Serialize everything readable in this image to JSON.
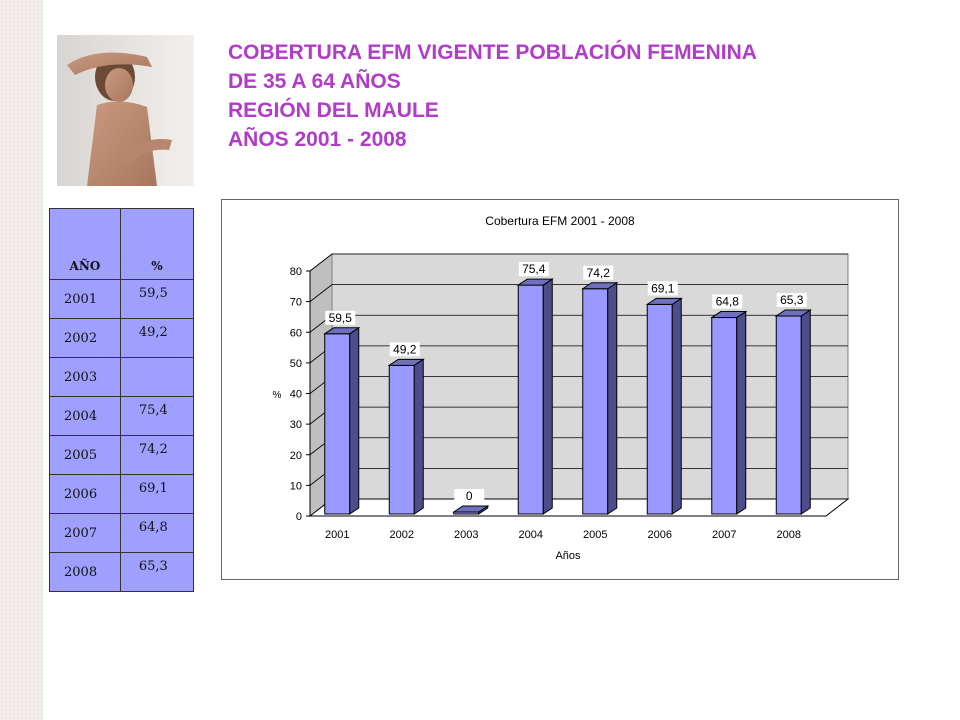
{
  "title": {
    "line1": "COBERTURA EFM VIGENTE POBLACIÓN FEMENINA",
    "line2": "DE 35 A 64 AÑOS",
    "line3": "REGIÓN DEL MAULE",
    "line4": "AÑOS 2001 - 2008"
  },
  "table": {
    "headers": [
      "AÑO",
      "%"
    ],
    "rows": [
      {
        "year": "2001",
        "value": "59,5"
      },
      {
        "year": "2002",
        "value": "49,2"
      },
      {
        "year": "2003",
        "value": ""
      },
      {
        "year": "2004",
        "value": "75,4"
      },
      {
        "year": "2005",
        "value": "74,2"
      },
      {
        "year": "2006",
        "value": "69,1"
      },
      {
        "year": "2007",
        "value": "64,8"
      },
      {
        "year": "2008",
        "value": "65,3"
      }
    ]
  },
  "colors": {
    "title": "#b03cc8",
    "bar_front": "#9999ff",
    "bar_side": "#4d4d8c",
    "bar_top": "#7070c0",
    "table_bg": "#9f9fff",
    "plot_wall": "#d9d9d9"
  },
  "chart_data": {
    "type": "bar",
    "title": "Cobertura EFM 2001 - 2008",
    "xlabel": "Años",
    "ylabel": "%",
    "categories": [
      "2001",
      "2002",
      "2003",
      "2004",
      "2005",
      "2006",
      "2007",
      "2008"
    ],
    "values": [
      59.5,
      49.2,
      0,
      75.4,
      74.2,
      69.1,
      64.8,
      65.3
    ],
    "data_labels": [
      "59,5",
      "49,2",
      "0",
      "75,4",
      "74,2",
      "69,1",
      "64,8",
      "65,3"
    ],
    "ylim": [
      0,
      80
    ],
    "yticks": [
      0,
      10,
      20,
      30,
      40,
      50,
      60,
      70,
      80
    ],
    "ytick_labels": [
      "0",
      "10",
      "20",
      "30",
      "40",
      "50",
      "60",
      "70",
      "80"
    ],
    "grid": true,
    "style": "3d"
  }
}
